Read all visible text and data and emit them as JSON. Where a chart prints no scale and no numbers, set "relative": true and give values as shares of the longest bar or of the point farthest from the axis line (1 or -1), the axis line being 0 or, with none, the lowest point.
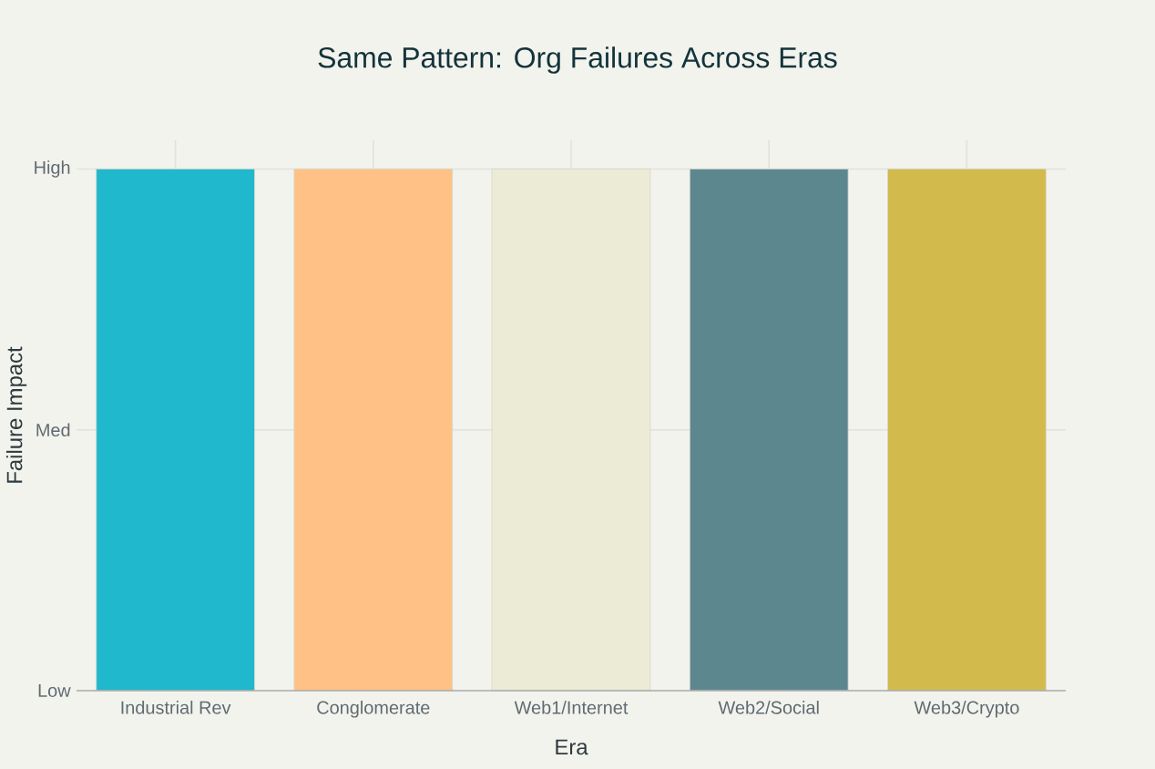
{
  "chart_data": {
    "type": "bar",
    "title": "Same Pattern: Org Failures Across Eras",
    "xlabel": "Era",
    "ylabel": "Failure Impact",
    "categories": [
      "Industrial Rev",
      "Conglomerate",
      "Web1/Internet",
      "Web2/Social",
      "Web3/Crypto"
    ],
    "values": [
      1,
      1,
      1,
      1,
      1
    ],
    "colors": [
      "#1FB8CD",
      "#FFC185",
      "#ECEBD5",
      "#5D878F",
      "#D2BA4C"
    ],
    "relative": true,
    "annotations": [
      "Low",
      "Med",
      "High"
    ],
    "grid": true
  }
}
